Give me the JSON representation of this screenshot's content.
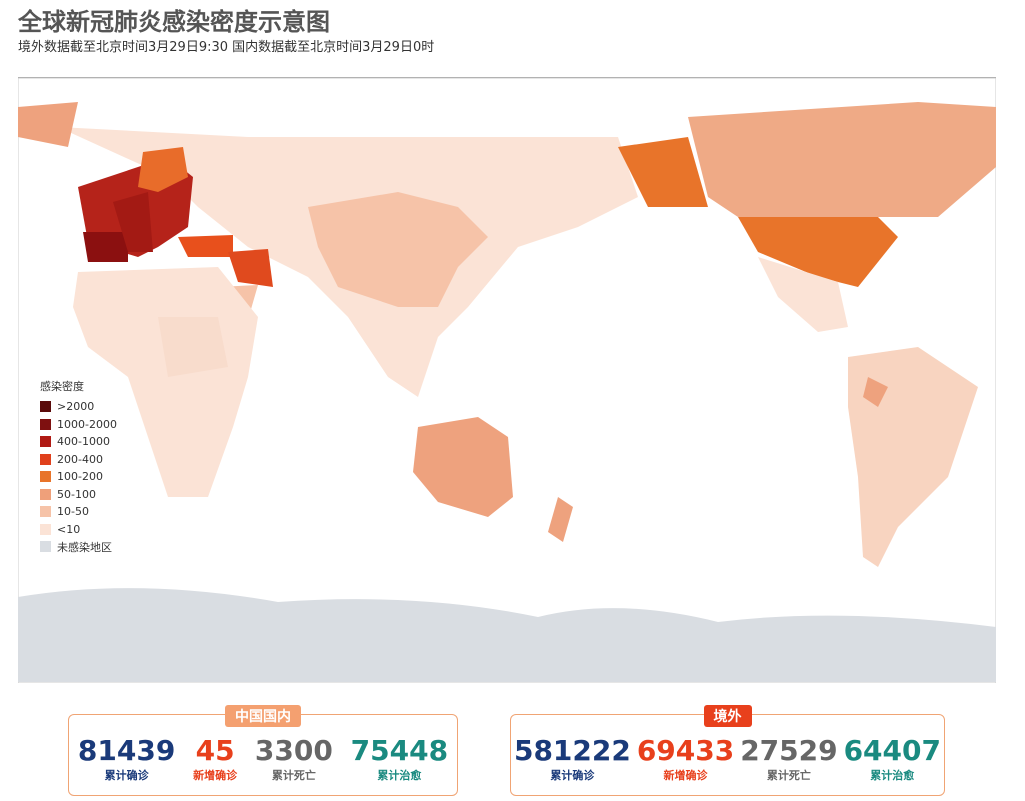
{
  "header": {
    "title": "全球新冠肺炎感染密度示意图",
    "subtitle": "境外数据截至北京时间3月29日9:30   国内数据截至北京时间3月29日0时"
  },
  "legend": {
    "title": "感染密度",
    "items": [
      {
        "label": ">2000",
        "color": "#5a0a0a"
      },
      {
        "label": "1000-2000",
        "color": "#7e1010"
      },
      {
        "label": "400-1000",
        "color": "#b01a14"
      },
      {
        "label": "200-400",
        "color": "#e0401c"
      },
      {
        "label": "100-200",
        "color": "#e8742a"
      },
      {
        "label": "50-100",
        "color": "#efa07a"
      },
      {
        "label": "10-50",
        "color": "#f6c3a8"
      },
      {
        "label": "<10",
        "color": "#fbe3d6"
      },
      {
        "label": "未感染地区",
        "color": "#d9dde2"
      }
    ]
  },
  "panels": [
    {
      "tag": "中国国内",
      "tag_color": "#f4a070",
      "stats": [
        {
          "value": "81439",
          "label": "累计确诊"
        },
        {
          "value": "45",
          "label": "新增确诊"
        },
        {
          "value": "3300",
          "label": "累计死亡"
        },
        {
          "value": "75448",
          "label": "累计治愈"
        }
      ]
    },
    {
      "tag": "境外",
      "tag_color": "#e8401c",
      "stats": [
        {
          "value": "581222",
          "label": "累计确诊"
        },
        {
          "value": "69433",
          "label": "新增确诊"
        },
        {
          "value": "27529",
          "label": "累计死亡"
        },
        {
          "value": "64407",
          "label": "累计治愈"
        }
      ]
    }
  ]
}
